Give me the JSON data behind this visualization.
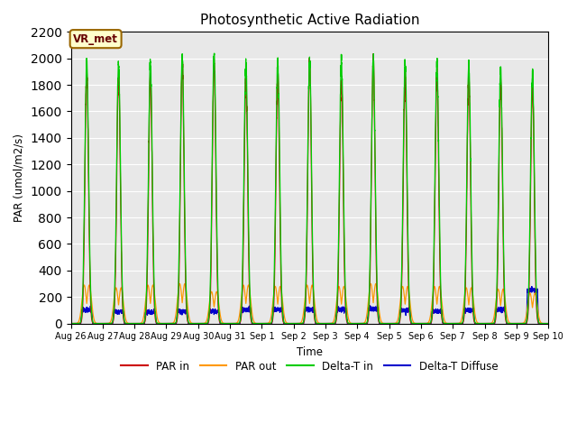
{
  "title": "Photosynthetic Active Radiation",
  "ylabel": "PAR (umol/m2/s)",
  "xlabel": "Time",
  "ylim": [
    0,
    2200
  ],
  "yticks": [
    0,
    200,
    400,
    600,
    800,
    1000,
    1200,
    1400,
    1600,
    1800,
    2000,
    2200
  ],
  "legend_labels": [
    "PAR in",
    "PAR out",
    "Delta-T in",
    "Delta-T Diffuse"
  ],
  "legend_colors": [
    "#cc0000",
    "#ff9900",
    "#00cc00",
    "#0000cc"
  ],
  "annotation_text": "VR_met",
  "annotation_box_color": "#ffffcc",
  "annotation_text_color": "#660000",
  "annotation_edge_color": "#996600",
  "bg_color": "#e8e8e8",
  "n_days": 15,
  "pts_per_day": 288,
  "peak_heights_red": [
    1900,
    1880,
    1880,
    1960,
    1970,
    1850,
    1870,
    1980,
    1840,
    1990,
    1870,
    1870,
    1860,
    1830,
    1800
  ],
  "peak_heights_green": [
    1970,
    1960,
    1960,
    2020,
    2040,
    1970,
    1980,
    1990,
    1980,
    1990,
    1980,
    1960,
    1950,
    1930,
    1890
  ],
  "peak_heights_orange": [
    290,
    270,
    290,
    300,
    240,
    290,
    280,
    290,
    280,
    300,
    280,
    280,
    270,
    260,
    230
  ],
  "peak_heights_blue": [
    100,
    90,
    85,
    90,
    90,
    105,
    105,
    105,
    105,
    110,
    100,
    90,
    100,
    105,
    250
  ],
  "tick_labels": [
    "Aug 26",
    "Aug 27",
    "Aug 28",
    "Aug 29",
    "Aug 30",
    "Aug 31",
    "Sep 1",
    "Sep 2",
    "Sep 3",
    "Sep 4",
    "Sep 5",
    "Sep 6",
    "Sep 7",
    "Sep 8",
    "Sep 9",
    "Sep 10"
  ]
}
